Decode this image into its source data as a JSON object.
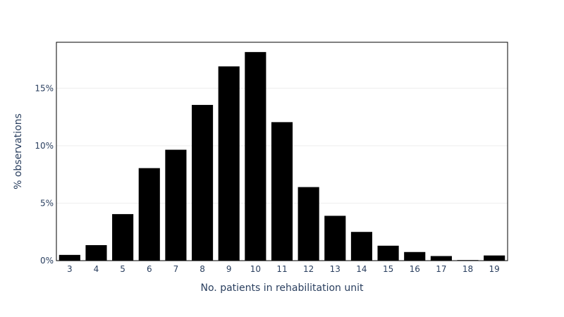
{
  "chart_data": {
    "type": "bar",
    "title": "",
    "xlabel": "No. patients in rehabilitation unit",
    "ylabel": "% observations",
    "categories": [
      "3",
      "4",
      "5",
      "6",
      "7",
      "8",
      "9",
      "10",
      "11",
      "12",
      "13",
      "14",
      "15",
      "16",
      "17",
      "18",
      "19"
    ],
    "values": [
      0.5,
      1.35,
      4.05,
      8.05,
      9.65,
      13.55,
      16.9,
      18.15,
      12.05,
      6.4,
      3.9,
      2.5,
      1.3,
      0.75,
      0.4,
      0.05,
      0.45
    ],
    "ylim": [
      0,
      19
    ],
    "yticks": [
      0,
      5,
      10,
      15
    ],
    "ytick_labels": [
      "0%",
      "5%",
      "10%",
      "15%"
    ],
    "grid": "horizontal",
    "bar_color": "#000000",
    "gridline_color": "#eeeeee",
    "text_color": "#2a3f5f"
  }
}
